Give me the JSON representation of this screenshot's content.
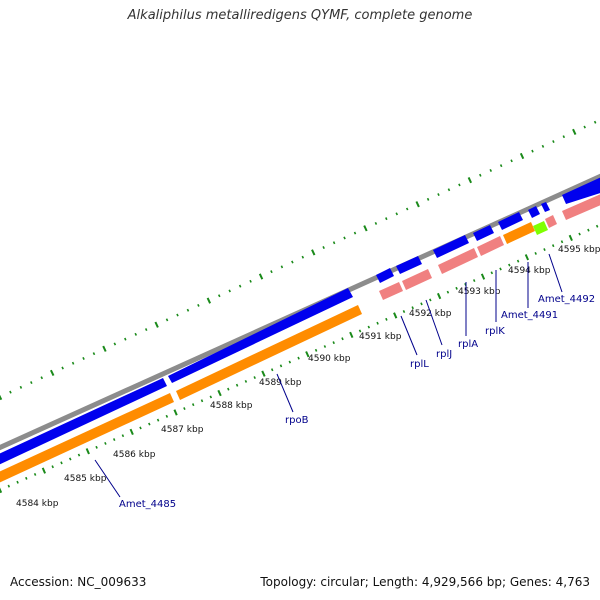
{
  "title": "Alkaliphilus metalliredigens QYMF, complete genome",
  "footer": {
    "accession": "Accession: NC_009633",
    "summary": "Topology: circular; Length: 4,929,566 bp; Genes: 4,763"
  },
  "colors": {
    "backbone": "#8c8c8c",
    "forward_cds": "#0000ee",
    "reverse_cds": "#ff8c00",
    "forward_rna": "#f08080",
    "highlight": "#7fff00",
    "ticks": "#1a8a1a",
    "label": "#00008b"
  },
  "scale_labels": [
    {
      "text": "4584 kbp"
    },
    {
      "text": "4585 kbp"
    },
    {
      "text": "4586 kbp"
    },
    {
      "text": "4587 kbp"
    },
    {
      "text": "4588 kbp"
    },
    {
      "text": "4589 kbp"
    },
    {
      "text": "4590 kbp"
    },
    {
      "text": "4591 kbp"
    },
    {
      "text": "4592 kbp"
    },
    {
      "text": "4593 kbp"
    },
    {
      "text": "4594 kbp"
    },
    {
      "text": "4595 kbp"
    }
  ],
  "gene_labels": [
    {
      "text": "Amet_4485"
    },
    {
      "text": "rpoB"
    },
    {
      "text": "rplL"
    },
    {
      "text": "rplJ"
    },
    {
      "text": "rplA"
    },
    {
      "text": "rplK"
    },
    {
      "text": "Amet_4491"
    },
    {
      "text": "Amet_4492"
    }
  ]
}
